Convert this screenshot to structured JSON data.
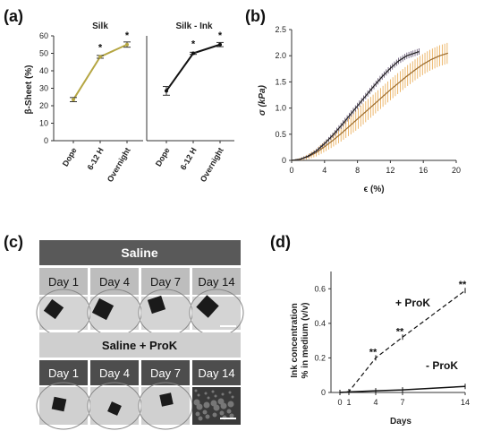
{
  "panels": {
    "a": "(a)",
    "b": "(b)",
    "c": "(c)",
    "d": "(d)"
  },
  "colors": {
    "silk": "#b5a642",
    "ink": "#111111",
    "strain_err": "#e8a64a",
    "bg_dark": "#595959",
    "bg_light": "#cfcfcf",
    "cell_light": "#bdbdbd",
    "cell_dark": "#4d4d4d"
  },
  "chart_data": [
    {
      "type": "line",
      "title": "Silk",
      "ylabel": "β-Sheet (%)",
      "categories": [
        "Dope",
        "6-12 H",
        "Overnight"
      ],
      "ylim": [
        0,
        60
      ],
      "yticks": [
        "0",
        "10",
        "20",
        "30",
        "40",
        "50",
        "60"
      ],
      "series": [
        {
          "values": [
            23.5,
            48,
            55
          ],
          "errors": [
            1.2,
            0.8,
            1.5
          ]
        }
      ],
      "annotations": [
        "",
        "*",
        "*"
      ]
    },
    {
      "type": "line",
      "title": "Silk - Ink",
      "categories": [
        "Dope",
        "6-12 H",
        "Overnight"
      ],
      "ylim": [
        0,
        60
      ],
      "series": [
        {
          "values": [
            28.5,
            50,
            55
          ],
          "errors": [
            2.5,
            0.6,
            1.2
          ]
        }
      ],
      "annotations": [
        "",
        "*",
        "*"
      ]
    },
    {
      "type": "line",
      "xlabel": "ϵ (%)",
      "ylabel": "σ (kPa)",
      "xlim": [
        0,
        20
      ],
      "ylim": [
        0,
        2.5
      ],
      "xticks": [
        "0",
        "4",
        "8",
        "12",
        "16",
        "20"
      ],
      "yticks": [
        "0",
        "0.5",
        "1.0",
        "1.5",
        "2.0",
        "2.5"
      ],
      "series": [
        {
          "x": [
            0,
            1,
            2,
            3,
            4,
            5,
            6,
            7,
            8,
            9,
            10,
            11,
            12,
            13,
            14,
            15.5
          ],
          "y": [
            0,
            0.02,
            0.08,
            0.18,
            0.32,
            0.48,
            0.66,
            0.85,
            1.04,
            1.23,
            1.42,
            1.6,
            1.76,
            1.9,
            2.0,
            2.08
          ],
          "err": 0.05
        },
        {
          "x": [
            0,
            1,
            2,
            3,
            4,
            5,
            6,
            7,
            8,
            9,
            10,
            11,
            12,
            13,
            14,
            15,
            16,
            17,
            18,
            19
          ],
          "y": [
            0,
            0.02,
            0.07,
            0.15,
            0.26,
            0.38,
            0.51,
            0.65,
            0.79,
            0.93,
            1.07,
            1.21,
            1.35,
            1.48,
            1.61,
            1.73,
            1.84,
            1.93,
            2.0,
            2.05
          ],
          "err": 0.2
        }
      ]
    },
    {
      "type": "line",
      "xlabel": "Days",
      "ylabel": "Ink concentration % in medium (v/v)",
      "xlim": [
        0,
        15
      ],
      "ylim": [
        0,
        0.7
      ],
      "xticks": [
        "0",
        "1",
        "4",
        "7",
        "14"
      ],
      "yticks": [
        "0",
        "0.2",
        "0.4",
        "0.6"
      ],
      "series": [
        {
          "name": "+ ProK",
          "x": [
            0,
            1,
            4,
            7,
            14
          ],
          "y": [
            0,
            0.005,
            0.2,
            0.32,
            0.59
          ],
          "annotations": [
            "",
            "",
            "**",
            "**",
            "**"
          ]
        },
        {
          "name": "- ProK",
          "x": [
            0,
            1,
            4,
            7,
            14
          ],
          "y": [
            0,
            0.003,
            0.01,
            0.015,
            0.035
          ]
        }
      ]
    }
  ],
  "panel_c": {
    "header1": "Saline",
    "header2": "Saline + ProK",
    "days": [
      "Day 1",
      "Day 4",
      "Day 7",
      "Day 14"
    ]
  }
}
